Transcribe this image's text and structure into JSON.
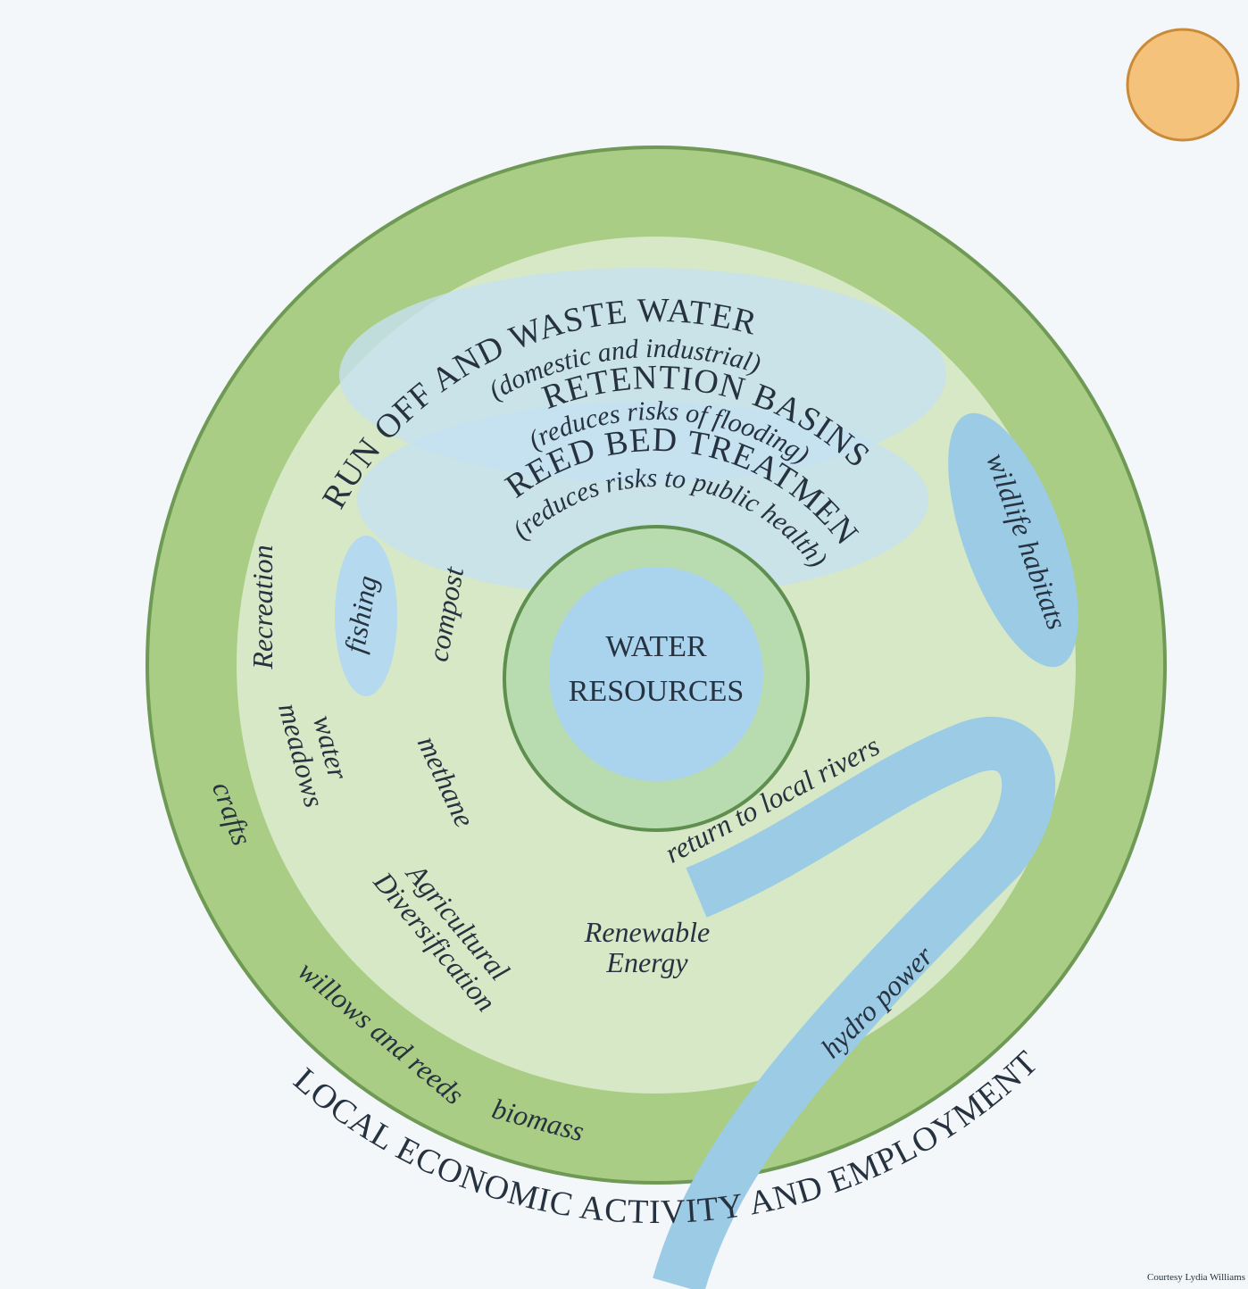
{
  "center": {
    "lines": [
      "WATER",
      "RESOURCES"
    ]
  },
  "rings": [
    {
      "label": "RUN OFF AND WASTE WATER",
      "sublabel": "(domestic and industrial)"
    },
    {
      "label": "RETENTION BASINS",
      "sublabel": "(reduces risks of flooding)"
    },
    {
      "label": "REED BED TREATMENT",
      "sublabel": "(reduces risks to public health)"
    }
  ],
  "uses": {
    "wildlife": "wildlife habitats",
    "recreation": "Recreation",
    "fishing": "fishing",
    "compost": "compost",
    "water_meadows": [
      "water",
      "meadows"
    ],
    "methane": "methane",
    "crafts": "crafts",
    "agricultural": [
      "Agricultural",
      "Diversification"
    ],
    "renewable": [
      "Renewable",
      "Energy"
    ],
    "hydro": "hydro power",
    "willows": "willows and reeds",
    "biomass": "biomass",
    "rivers": "return to local rivers"
  },
  "footer": {
    "banner": "LOCAL ECONOMIC ACTIVITY AND EMPLOYMENT",
    "credit": "Courtesy Lydia Williams"
  }
}
